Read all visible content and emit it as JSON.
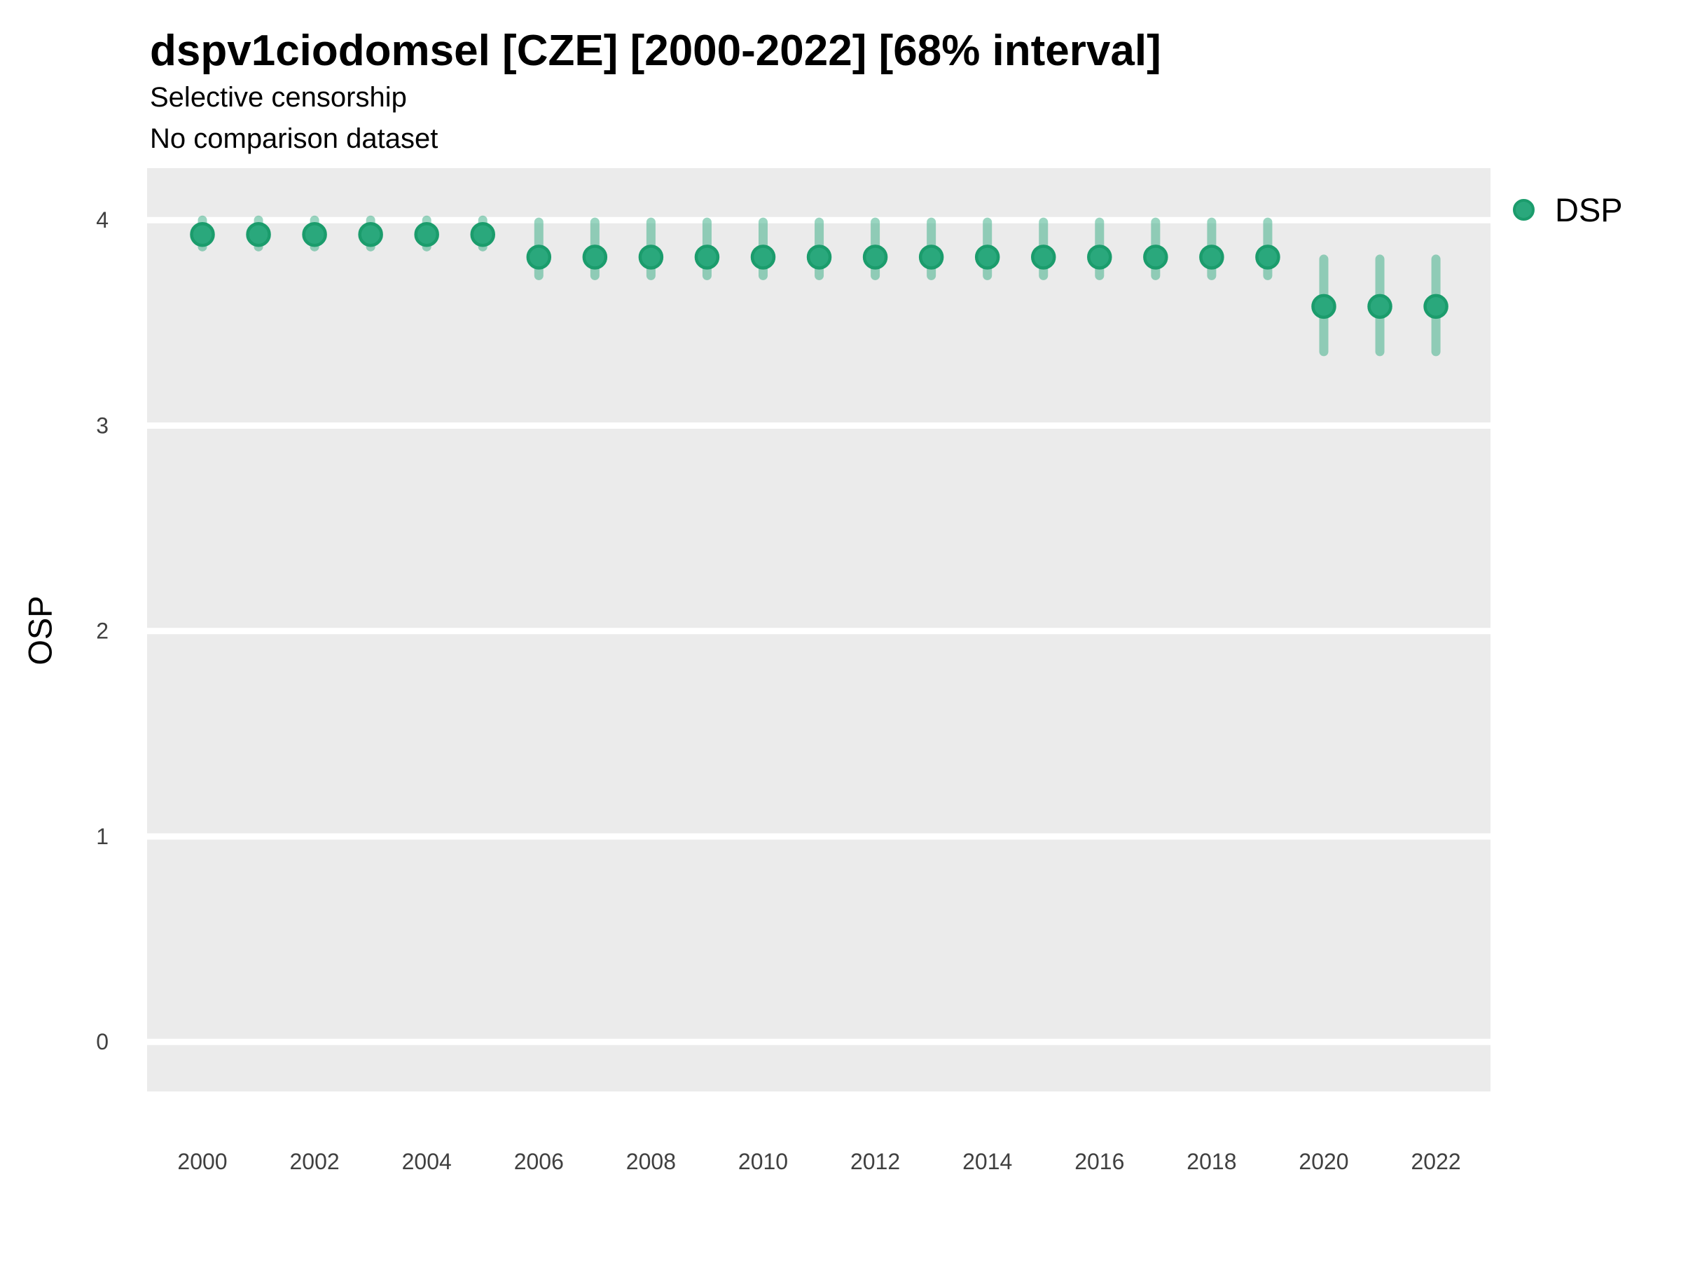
{
  "header": {
    "title": "dspv1ciodomsel [CZE] [2000-2022] [68% interval]",
    "subtitle_line1": "Selective censorship",
    "subtitle_line2": "No comparison dataset"
  },
  "colors": {
    "panel_background": "#ebebeb",
    "gridline": "#ffffff",
    "point_fill": "#2aa87c",
    "point_stroke": "#1b9c6c",
    "interval_color": "rgba(42,168,124,0.48)",
    "tick_text": "#404040",
    "text": "#000000"
  },
  "chart_data": {
    "type": "scatter",
    "subtype": "pointrange",
    "title": "dspv1ciodomsel [CZE] [2000-2022] [68% interval]",
    "subtitle": [
      "Selective censorship",
      "No comparison dataset"
    ],
    "xlabel": "",
    "ylabel": "OSP",
    "interval_level": "68%",
    "ylim": [
      -0.24,
      4.25
    ],
    "xlim": [
      1999,
      2023
    ],
    "y_ticks": [
      4,
      3,
      2,
      1,
      0
    ],
    "x_ticks": [
      2000,
      2002,
      2004,
      2006,
      2008,
      2010,
      2012,
      2014,
      2016,
      2018,
      2020,
      2022
    ],
    "grid": "horizontal-major-only",
    "legend_position": "right-top",
    "series": [
      {
        "name": "DSP",
        "points": [
          {
            "year": 2000,
            "est": 3.93,
            "lo": 3.87,
            "hi": 4.0
          },
          {
            "year": 2001,
            "est": 3.93,
            "lo": 3.87,
            "hi": 4.0
          },
          {
            "year": 2002,
            "est": 3.93,
            "lo": 3.87,
            "hi": 4.0
          },
          {
            "year": 2003,
            "est": 3.93,
            "lo": 3.87,
            "hi": 4.0
          },
          {
            "year": 2004,
            "est": 3.93,
            "lo": 3.87,
            "hi": 4.0
          },
          {
            "year": 2005,
            "est": 3.93,
            "lo": 3.87,
            "hi": 4.0
          },
          {
            "year": 2006,
            "est": 3.82,
            "lo": 3.73,
            "hi": 3.99
          },
          {
            "year": 2007,
            "est": 3.82,
            "lo": 3.73,
            "hi": 3.99
          },
          {
            "year": 2008,
            "est": 3.82,
            "lo": 3.73,
            "hi": 3.99
          },
          {
            "year": 2009,
            "est": 3.82,
            "lo": 3.73,
            "hi": 3.99
          },
          {
            "year": 2010,
            "est": 3.82,
            "lo": 3.73,
            "hi": 3.99
          },
          {
            "year": 2011,
            "est": 3.82,
            "lo": 3.73,
            "hi": 3.99
          },
          {
            "year": 2012,
            "est": 3.82,
            "lo": 3.73,
            "hi": 3.99
          },
          {
            "year": 2013,
            "est": 3.82,
            "lo": 3.73,
            "hi": 3.99
          },
          {
            "year": 2014,
            "est": 3.82,
            "lo": 3.73,
            "hi": 3.99
          },
          {
            "year": 2015,
            "est": 3.82,
            "lo": 3.73,
            "hi": 3.99
          },
          {
            "year": 2016,
            "est": 3.82,
            "lo": 3.73,
            "hi": 3.99
          },
          {
            "year": 2017,
            "est": 3.82,
            "lo": 3.73,
            "hi": 3.99
          },
          {
            "year": 2018,
            "est": 3.82,
            "lo": 3.73,
            "hi": 3.99
          },
          {
            "year": 2019,
            "est": 3.82,
            "lo": 3.73,
            "hi": 3.99
          },
          {
            "year": 2020,
            "est": 3.58,
            "lo": 3.36,
            "hi": 3.81
          },
          {
            "year": 2021,
            "est": 3.58,
            "lo": 3.36,
            "hi": 3.81
          },
          {
            "year": 2022,
            "est": 3.58,
            "lo": 3.36,
            "hi": 3.81
          }
        ]
      }
    ]
  }
}
